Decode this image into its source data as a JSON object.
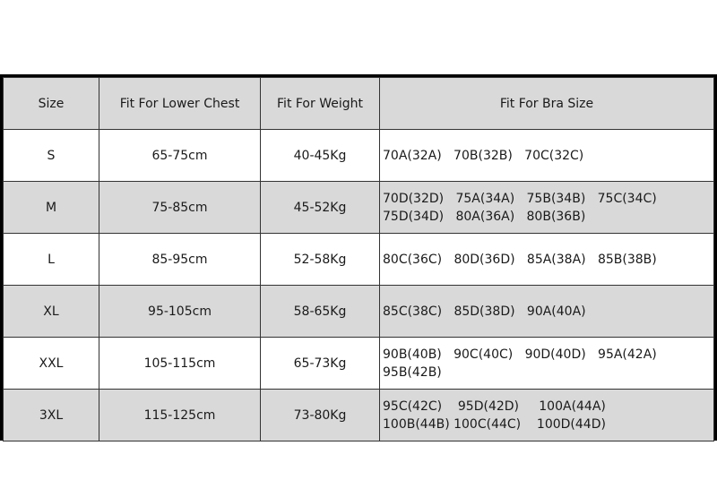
{
  "headers": [
    "Size",
    "Fit For Lower Chest",
    "Fit For Weight",
    "Fit For Bra Size"
  ],
  "rows": [
    {
      "size": "S",
      "chest": "65-75cm",
      "weight": "40-45Kg",
      "bra": [
        "70A(32A)   70B(32B)   70C(32C)"
      ]
    },
    {
      "size": "M",
      "chest": "75-85cm",
      "weight": "45-52Kg",
      "bra": [
        "70D(32D)   75A(34A)   75B(34B)   75C(34C)",
        "75D(34D)   80A(36A)   80B(36B)"
      ]
    },
    {
      "size": "L",
      "chest": "85-95cm",
      "weight": "52-58Kg",
      "bra": [
        "80C(36C)   80D(36D)   85A(38A)   85B(38B)"
      ]
    },
    {
      "size": "XL",
      "chest": "95-105cm",
      "weight": "58-65Kg",
      "bra": [
        "85C(38C)   85D(38D)   90A(40A)"
      ]
    },
    {
      "size": "XXL",
      "chest": "105-115cm",
      "weight": "65-73Kg",
      "bra": [
        "90B(40B)   90C(40C)   90D(40D)   95A(42A)",
        "95B(42B)"
      ]
    },
    {
      "size": "3XL",
      "chest": "115-125cm",
      "weight": "73-80Kg",
      "bra": [
        "95C(42C)    95D(42D)     100A(44A)",
        "100B(44B) 100C(44C)    100D(44D)"
      ]
    }
  ],
  "colors": {
    "header_bg": "#d9d9d9",
    "alt_row_bg": "#d9d9d9",
    "border": "#000000"
  }
}
